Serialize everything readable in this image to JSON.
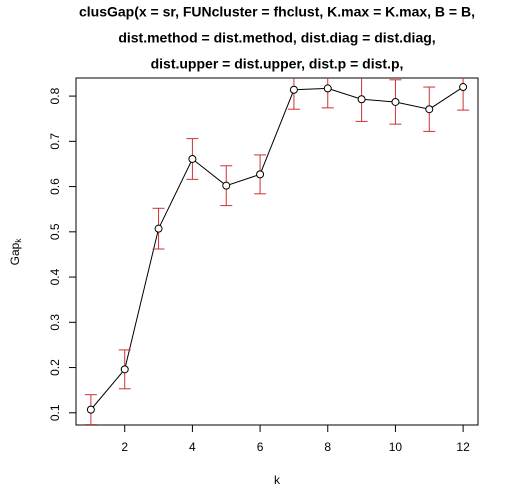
{
  "chart_data": {
    "type": "errorbar-line",
    "title_lines": [
      "clusGap(x = sr, FUNcluster = fhclust, K.max = K.max, B = B,",
      "dist.method = dist.method, dist.diag = dist.diag,",
      "dist.upper = dist.upper, dist.p = dist.p,"
    ],
    "x_label": "k",
    "y_label": "Gap",
    "y_label_subscript": "k",
    "x": [
      1,
      2,
      3,
      4,
      5,
      6,
      7,
      8,
      9,
      10,
      11,
      12
    ],
    "series": [
      {
        "color": "#000000",
        "error_color": "#d03030",
        "values": [
          0.107,
          0.196,
          0.507,
          0.661,
          0.602,
          0.627,
          0.814,
          0.817,
          0.793,
          0.787,
          0.771,
          0.82
        ],
        "errors": [
          0.033,
          0.043,
          0.045,
          0.045,
          0.044,
          0.043,
          0.043,
          0.043,
          0.049,
          0.049,
          0.049,
          0.051
        ]
      }
    ],
    "xlim": [
      0.56,
      12.44
    ],
    "ylim": [
      0.073,
      0.84
    ],
    "xticks": [
      2,
      4,
      6,
      8,
      10,
      12
    ],
    "yticks": [
      0.1,
      0.2,
      0.3,
      0.4,
      0.5,
      0.6,
      0.7,
      0.8
    ]
  }
}
